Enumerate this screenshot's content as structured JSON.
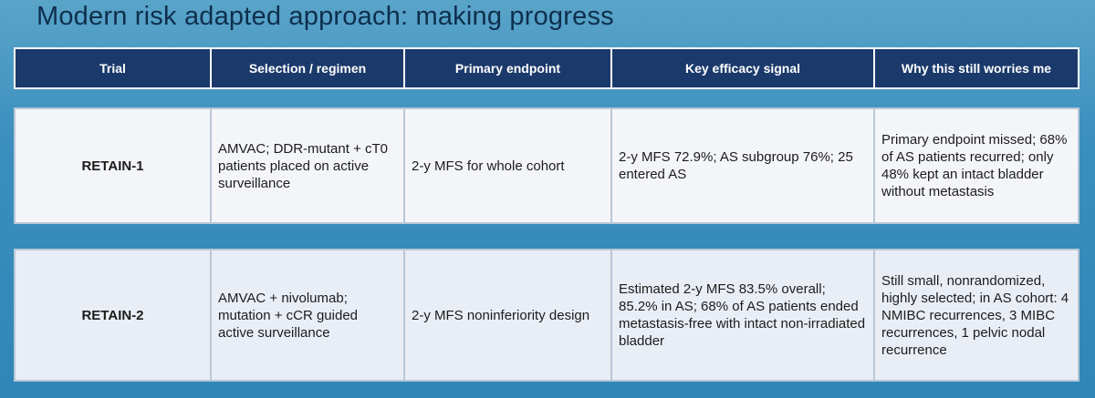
{
  "slide": {
    "title": "Modern risk adapted approach: making progress"
  },
  "table": {
    "headers": [
      "Trial",
      "Selection / regimen",
      "Primary endpoint",
      "Key efficacy signal",
      "Why this still worries me"
    ],
    "rows": [
      {
        "trial": "RETAIN-1",
        "selection": "AMVAC; DDR-mutant + cT0 patients placed on active surveillance",
        "endpoint": "2-y MFS for whole cohort",
        "efficacy": "2-y MFS 72.9%; AS subgroup 76%; 25 entered AS",
        "worries": "Primary endpoint missed; 68% of AS patients recurred; only 48% kept an intact bladder without metastasis"
      },
      {
        "trial": "RETAIN-2",
        "selection": "AMVAC + nivolumab; mutation + cCR guided active surveillance",
        "endpoint": "2-y MFS noninferiority design",
        "efficacy": "Estimated 2-y MFS 83.5% overall; 85.2% in AS; 68% of AS patients ended metastasis-free with intact non-irradiated bladder",
        "worries": "Still small, nonrandomized, highly selected; in AS cohort: 4 NMIBC recurrences, 3 MIBC recurrences, 1 pelvic nodal recurrence"
      }
    ]
  }
}
